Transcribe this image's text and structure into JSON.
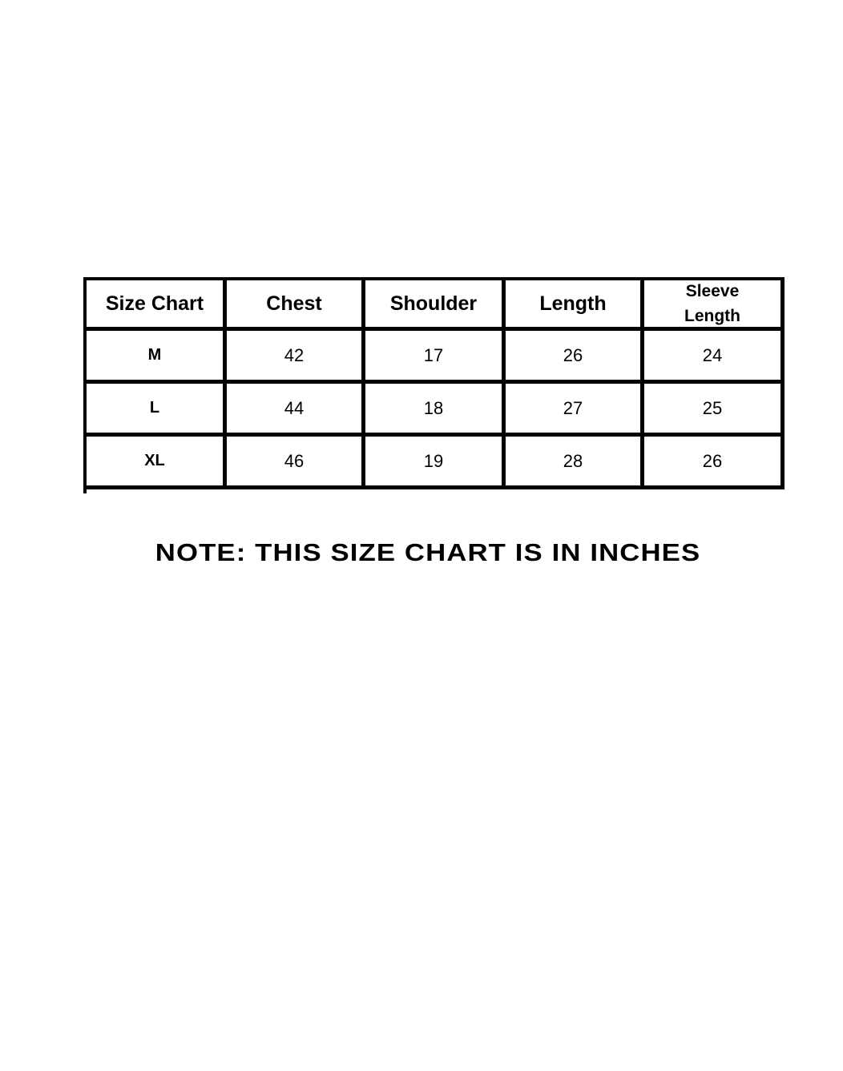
{
  "table": {
    "headers": [
      "Size Chart",
      "Chest",
      "Shoulder",
      "Length",
      "Sleeve Length"
    ],
    "sleeve_header_lines": [
      "Sleeve",
      "Length"
    ],
    "rows": [
      [
        "M",
        "42",
        "17",
        "26",
        "24"
      ],
      [
        "L",
        "44",
        "18",
        "27",
        "25"
      ],
      [
        "XL",
        "46",
        "19",
        "28",
        "26"
      ]
    ]
  },
  "note": "NOTE: THIS SIZE CHART IS IN INCHES"
}
